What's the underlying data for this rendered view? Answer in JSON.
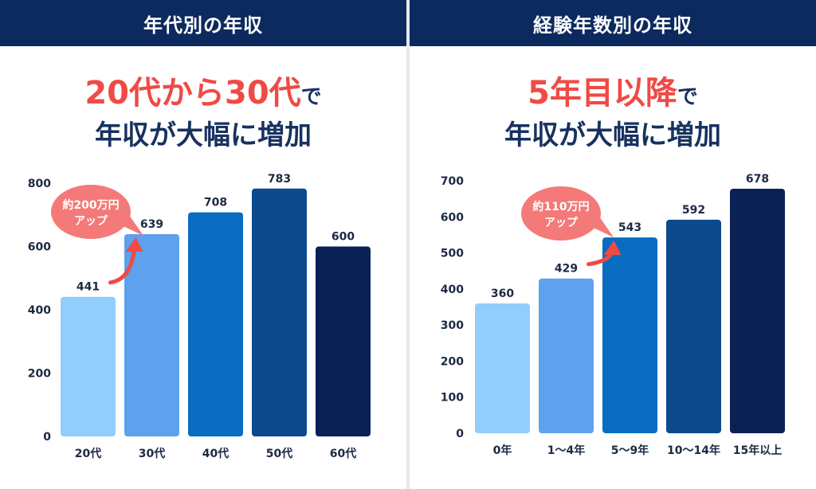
{
  "colors": {
    "header_bg": "#0d2a5e",
    "accent_red": "#f04a45",
    "navy_text": "#17325f",
    "bubble": "#f37a78",
    "bars": [
      "#92cdfb",
      "#5ea1ec",
      "#0a6cc0",
      "#0c4a8d",
      "#0a2156"
    ]
  },
  "panels": {
    "left": {
      "header": "年代別の年収",
      "headline_red": "20代から30代",
      "headline_suffix": "で",
      "headline_line2": "年収が大幅に増加",
      "bubble_line1": "約200万円",
      "bubble_line2": "アップ"
    },
    "right": {
      "header": "経験年数別の年収",
      "headline_red": "5年目以降",
      "headline_suffix": "で",
      "headline_line2": "年収が大幅に増加",
      "bubble_line1": "約110万円",
      "bubble_line2": "アップ"
    }
  },
  "chart_data": [
    {
      "type": "bar",
      "title": "年代別の年収",
      "categories": [
        "20代",
        "30代",
        "40代",
        "50代",
        "60代"
      ],
      "values": [
        441,
        639,
        708,
        783,
        600
      ],
      "ylim": [
        0,
        800
      ],
      "yticks": [
        0,
        200,
        400,
        600,
        800
      ],
      "grid": false,
      "annotation": {
        "text": "約200万円アップ",
        "from": "20代",
        "to": "30代"
      }
    },
    {
      "type": "bar",
      "title": "経験年数別の年収",
      "categories": [
        "0年",
        "1～4年",
        "5～9年",
        "10～14年",
        "15年以上"
      ],
      "values": [
        360,
        429,
        543,
        592,
        678
      ],
      "ylim": [
        0,
        700
      ],
      "yticks": [
        0,
        100,
        200,
        300,
        400,
        500,
        600,
        700
      ],
      "grid": false,
      "annotation": {
        "text": "約110万円アップ",
        "from": "1～4年",
        "to": "5～9年"
      }
    }
  ]
}
